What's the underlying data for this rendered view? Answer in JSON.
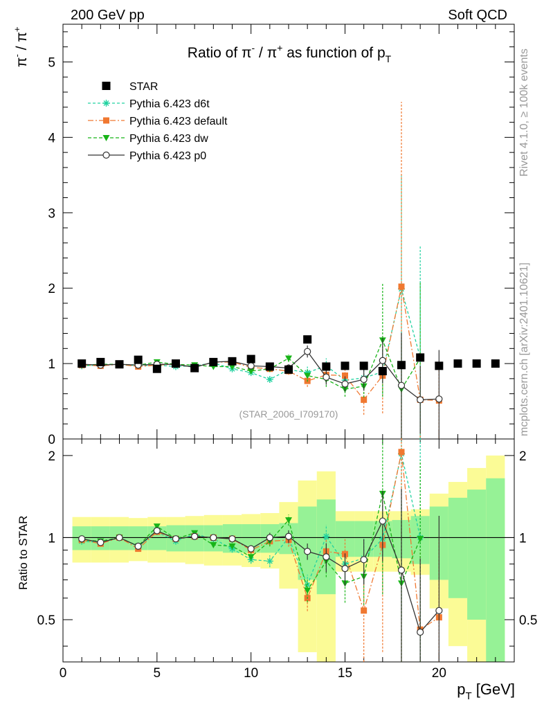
{
  "header": {
    "left": "200 GeV pp",
    "right": "Soft QCD"
  },
  "side_text": {
    "rivet": "Rivet 4.1.0, ≥ 100k events",
    "mcplots": "mcplots.cern.ch [arXiv:2401.10621]"
  },
  "chart_data": {
    "type": "scatter",
    "title_parts": {
      "pre": "Ratio of ",
      "a": "π",
      "a_sup": "-",
      "sep": " / ",
      "b": "π",
      "b_sup": "+",
      "post": " as function of p",
      "post_sub": "T"
    },
    "ylabel_parts": {
      "a": "π",
      "a_sup": "-",
      "sep": " / ",
      "b": "π",
      "b_sup": "+"
    },
    "xlabel_parts": {
      "main": "p",
      "sub": "T",
      "unit": " [GeV]"
    },
    "ratio_ylabel": "Ratio to STAR",
    "watermark": "(STAR_2006_I709170)",
    "xlim": [
      0,
      24
    ],
    "ylim": [
      0,
      5.5
    ],
    "ratio_ylim": [
      0.35,
      2.3
    ],
    "x_ticks": [
      "0",
      "5",
      "10",
      "15",
      "20"
    ],
    "y_ticks": [
      "0",
      "1",
      "2",
      "3",
      "4",
      "5"
    ],
    "ratio_ticks": [
      "0.5",
      "1",
      "2"
    ],
    "data": {
      "name": "STAR",
      "x": [
        1,
        2,
        3,
        4,
        5,
        6,
        7,
        8,
        9,
        10,
        11,
        12,
        13,
        14,
        15,
        16,
        17,
        18,
        19,
        20,
        21,
        22,
        23
      ],
      "y": [
        1.0,
        1.02,
        0.99,
        1.05,
        0.93,
        1.0,
        0.94,
        1.02,
        1.03,
        1.06,
        0.96,
        0.92,
        1.32,
        0.96,
        0.97,
        0.97,
        0.9,
        0.98,
        1.08,
        0.97,
        1.0,
        1.0,
        1.0
      ],
      "err": [
        0.02,
        0.02,
        0.02,
        0.02,
        0.02,
        0.02,
        0.02,
        0.02,
        0.02,
        0.02,
        0.02,
        0.02,
        0.03,
        0.02,
        0.02,
        0.02,
        0.02,
        0.02,
        0.02,
        0.02,
        0.02,
        0.02,
        0.02
      ]
    },
    "uncertainty_band": {
      "x_edges": [
        0.5,
        1.5,
        2.5,
        3.5,
        4.5,
        5.5,
        6.5,
        7.5,
        8.5,
        9.5,
        10.5,
        11.5,
        12.5,
        13.5,
        14.5,
        15.5,
        16.5,
        17.5,
        18.5,
        19.5,
        20.5,
        21.5,
        22.5,
        23.5
      ],
      "inner": [
        0.1,
        0.1,
        0.1,
        0.1,
        0.1,
        0.11,
        0.11,
        0.11,
        0.12,
        0.12,
        0.12,
        0.13,
        0.3,
        0.38,
        0.15,
        0.15,
        0.15,
        0.16,
        0.2,
        0.3,
        0.4,
        0.5,
        0.65
      ],
      "outer": [
        0.19,
        0.19,
        0.19,
        0.18,
        0.19,
        0.19,
        0.2,
        0.21,
        0.21,
        0.22,
        0.23,
        0.35,
        0.62,
        0.75,
        0.25,
        0.25,
        0.25,
        0.25,
        0.27,
        0.45,
        0.6,
        0.8,
        1.0
      ]
    },
    "series": [
      {
        "name": "Pythia 6.423 d6t",
        "color": "#20d2a0",
        "marker": "star",
        "dash": "4,3",
        "x": [
          1,
          2,
          3,
          4,
          5,
          6,
          7,
          8,
          9,
          10,
          11,
          12,
          13,
          14,
          15,
          16,
          17,
          18,
          19
        ],
        "y": [
          0.97,
          0.98,
          0.99,
          0.97,
          0.98,
          0.96,
          0.97,
          1.01,
          0.93,
          0.88,
          0.79,
          0.92,
          0.88,
          0.97,
          0.78,
          0.81,
          0.89,
          1.99,
          1.08
        ],
        "err": [
          0.02,
          0.02,
          0.02,
          0.02,
          0.02,
          0.02,
          0.02,
          0.02,
          0.03,
          0.03,
          0.04,
          0.05,
          0.08,
          0.1,
          0.1,
          0.15,
          0.3,
          1.5,
          1.48
        ],
        "ratio": [
          0.97,
          0.96,
          1.0,
          0.93,
          1.05,
          0.97,
          1.03,
          0.99,
          0.91,
          0.83,
          0.82,
          1.0,
          0.67,
          1.01,
          0.8,
          0.84,
          0.99,
          2.03,
          1.0
        ]
      },
      {
        "name": "Pythia 6.423 default",
        "color": "#f07830",
        "marker": "square",
        "dash": "8,3,2,3",
        "x": [
          1,
          2,
          3,
          4,
          5,
          6,
          7,
          8,
          9,
          10,
          11,
          12,
          13,
          14,
          15,
          16,
          17,
          18,
          19,
          20
        ],
        "y": [
          0.98,
          0.97,
          0.99,
          0.96,
          0.98,
          0.99,
          0.95,
          1.02,
          1.02,
          0.95,
          0.93,
          0.9,
          0.77,
          0.85,
          0.84,
          0.52,
          0.84,
          2.02,
          0.52,
          0.51
        ],
        "err": [
          0.02,
          0.02,
          0.02,
          0.02,
          0.02,
          0.02,
          0.02,
          0.02,
          0.03,
          0.03,
          0.04,
          0.05,
          0.08,
          0.1,
          0.12,
          0.2,
          0.5,
          2.45,
          0.5,
          0.5
        ],
        "ratio": [
          0.98,
          0.95,
          1.0,
          0.91,
          1.05,
          0.99,
          1.01,
          1.0,
          0.99,
          0.9,
          0.97,
          0.98,
          0.6,
          0.89,
          0.87,
          0.54,
          0.94,
          2.06,
          0.46,
          0.51
        ]
      },
      {
        "name": "Pythia 6.423 dw",
        "color": "#18b418",
        "marker": "triangle",
        "dash": "5,3",
        "x": [
          1,
          2,
          3,
          4,
          5,
          6,
          7,
          8,
          9,
          10,
          11,
          12,
          13,
          14,
          15,
          16,
          17,
          18,
          19
        ],
        "y": [
          0.98,
          0.99,
          0.99,
          0.98,
          1.02,
          0.99,
          0.98,
          0.96,
          0.96,
          0.9,
          0.93,
          1.07,
          0.84,
          0.79,
          0.66,
          0.7,
          1.31,
          0.66,
          1.07
        ],
        "err": [
          0.02,
          0.02,
          0.02,
          0.02,
          0.02,
          0.02,
          0.02,
          0.02,
          0.03,
          0.03,
          0.04,
          0.05,
          0.08,
          0.1,
          0.1,
          0.15,
          0.75,
          0.65,
          1.0
        ],
        "ratio": [
          0.98,
          0.97,
          1.0,
          0.93,
          1.1,
          0.99,
          1.04,
          0.94,
          0.93,
          0.85,
          0.97,
          1.16,
          0.64,
          0.82,
          0.68,
          0.72,
          1.45,
          0.68,
          0.99
        ]
      },
      {
        "name": "Pythia 6.423 p0",
        "color": "#333333",
        "marker": "circle",
        "dash": "",
        "x": [
          1,
          2,
          3,
          4,
          5,
          6,
          7,
          8,
          9,
          10,
          11,
          12,
          13,
          14,
          15,
          16,
          17,
          18,
          19,
          20
        ],
        "y": [
          0.99,
          0.98,
          0.99,
          0.98,
          0.99,
          0.99,
          0.95,
          1.02,
          1.03,
          0.97,
          0.96,
          0.94,
          1.16,
          0.82,
          0.73,
          0.79,
          1.04,
          0.71,
          0.52,
          0.53
        ],
        "err": [
          0.02,
          0.02,
          0.02,
          0.02,
          0.02,
          0.02,
          0.02,
          0.02,
          0.03,
          0.03,
          0.04,
          0.05,
          0.08,
          0.1,
          0.1,
          0.15,
          0.3,
          0.7,
          0.45,
          0.65
        ],
        "ratio": [
          0.99,
          0.96,
          1.0,
          0.93,
          1.06,
          0.99,
          1.01,
          1.0,
          0.99,
          0.91,
          1.0,
          1.01,
          0.89,
          0.85,
          0.77,
          0.83,
          1.15,
          0.76,
          0.45,
          0.54
        ]
      }
    ]
  }
}
